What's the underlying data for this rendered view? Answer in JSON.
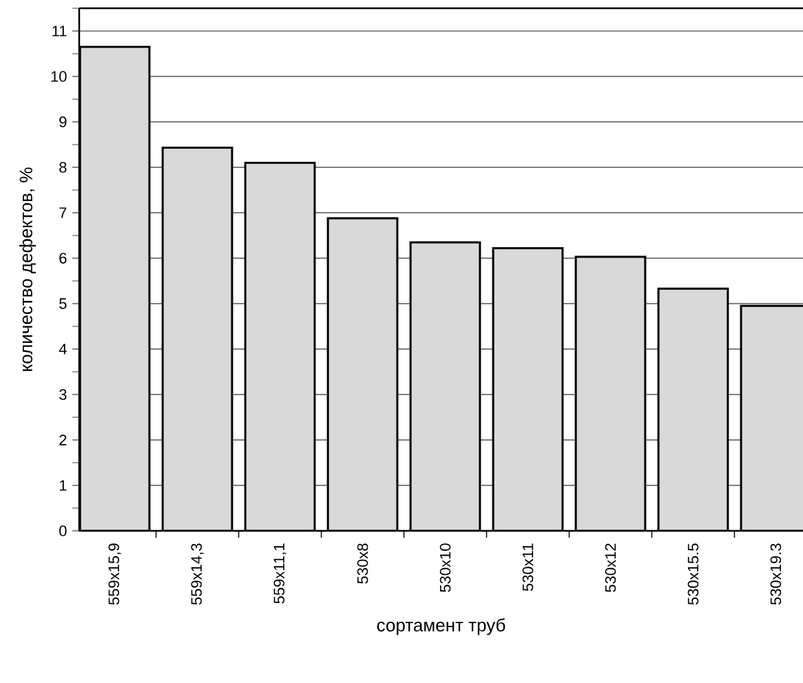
{
  "chart_data": {
    "type": "bar",
    "xlabel": "сортамент труб",
    "ylabel": "количество дефектов, %",
    "categories": [
      "559x15,9",
      "559x14,3",
      "559x11,1",
      "530x8",
      "530x10",
      "530x11",
      "530x12",
      "530x15.5",
      "530x19.3"
    ],
    "values": [
      10.65,
      8.43,
      8.1,
      6.88,
      6.35,
      6.22,
      6.03,
      5.33,
      4.95
    ],
    "color": "#d9d9d9",
    "ylim": [
      0,
      11.5
    ],
    "yticks": [
      0,
      1,
      2,
      3,
      4,
      5,
      6,
      7,
      8,
      9,
      10,
      11
    ],
    "grid": "y"
  }
}
